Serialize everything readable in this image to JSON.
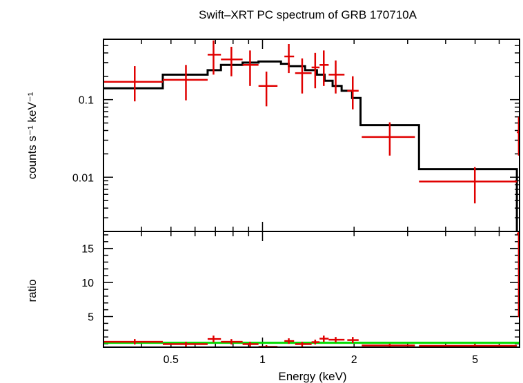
{
  "chart_data": [
    {
      "type": "scatter",
      "title": "Swift–XRT PC spectrum of GRB 170710A",
      "xlabel": "Energy (keV)",
      "ylabel": "counts s⁻¹ keV⁻¹",
      "xscale": "log",
      "yscale": "log",
      "xlim": [
        0.3,
        7.0
      ],
      "ylim": [
        0.002,
        0.6
      ],
      "y_tick_labels": [
        "0.01",
        "0.1"
      ],
      "y_tick_values": [
        0.01,
        0.1
      ],
      "x_tick_labels": [
        "0.5",
        "1",
        "2",
        "5"
      ],
      "x_tick_values": [
        0.5,
        1,
        2,
        5
      ],
      "data_color": "#e00000",
      "model_color": "#000000",
      "data": [
        {
          "x": 0.38,
          "xlo": 0.3,
          "xhi": 0.47,
          "y": 0.17,
          "ylo": 0.095,
          "yhi": 0.27
        },
        {
          "x": 0.56,
          "xlo": 0.47,
          "xhi": 0.66,
          "y": 0.18,
          "ylo": 0.098,
          "yhi": 0.28
        },
        {
          "x": 0.69,
          "xlo": 0.66,
          "xhi": 0.73,
          "y": 0.38,
          "ylo": 0.21,
          "yhi": 0.58
        },
        {
          "x": 0.79,
          "xlo": 0.73,
          "xhi": 0.86,
          "y": 0.33,
          "ylo": 0.2,
          "yhi": 0.48
        },
        {
          "x": 0.91,
          "xlo": 0.86,
          "xhi": 0.97,
          "y": 0.28,
          "ylo": 0.15,
          "yhi": 0.43
        },
        {
          "x": 1.03,
          "xlo": 0.97,
          "xhi": 1.12,
          "y": 0.15,
          "ylo": 0.082,
          "yhi": 0.23
        },
        {
          "x": 1.22,
          "xlo": 1.18,
          "xhi": 1.27,
          "y": 0.36,
          "ylo": 0.22,
          "yhi": 0.52
        },
        {
          "x": 1.35,
          "xlo": 1.28,
          "xhi": 1.45,
          "y": 0.22,
          "ylo": 0.12,
          "yhi": 0.34
        },
        {
          "x": 1.49,
          "xlo": 1.45,
          "xhi": 1.54,
          "y": 0.26,
          "ylo": 0.14,
          "yhi": 0.4
        },
        {
          "x": 1.59,
          "xlo": 1.54,
          "xhi": 1.65,
          "y": 0.28,
          "ylo": 0.15,
          "yhi": 0.43
        },
        {
          "x": 1.74,
          "xlo": 1.65,
          "xhi": 1.86,
          "y": 0.21,
          "ylo": 0.12,
          "yhi": 0.32
        },
        {
          "x": 1.98,
          "xlo": 1.9,
          "xhi": 2.07,
          "y": 0.13,
          "ylo": 0.075,
          "yhi": 0.2
        },
        {
          "x": 2.62,
          "xlo": 2.12,
          "xhi": 3.17,
          "y": 0.033,
          "ylo": 0.019,
          "yhi": 0.051
        },
        {
          "x": 4.99,
          "xlo": 3.27,
          "xhi": 6.86,
          "y": 0.0088,
          "ylo": 0.0046,
          "yhi": 0.0135
        },
        {
          "x": 6.96,
          "xlo": 6.86,
          "xhi": 7.0,
          "y": 0.038,
          "ylo": 0.019,
          "yhi": 0.06
        }
      ],
      "model_steps": [
        {
          "x": 0.3,
          "y": 0.14
        },
        {
          "x": 0.47,
          "y": 0.21
        },
        {
          "x": 0.63,
          "y": 0.21
        },
        {
          "x": 0.66,
          "y": 0.24
        },
        {
          "x": 0.73,
          "y": 0.28
        },
        {
          "x": 0.86,
          "y": 0.3
        },
        {
          "x": 0.97,
          "y": 0.31
        },
        {
          "x": 1.15,
          "y": 0.29
        },
        {
          "x": 1.22,
          "y": 0.27
        },
        {
          "x": 1.38,
          "y": 0.24
        },
        {
          "x": 1.51,
          "y": 0.21
        },
        {
          "x": 1.6,
          "y": 0.175
        },
        {
          "x": 1.7,
          "y": 0.15
        },
        {
          "x": 1.82,
          "y": 0.13
        },
        {
          "x": 1.97,
          "y": 0.105
        },
        {
          "x": 2.1,
          "y": 0.047
        },
        {
          "x": 3.27,
          "y": 0.0127
        },
        {
          "x": 6.86,
          "y": 0.0005
        }
      ]
    },
    {
      "type": "scatter",
      "xlabel": "Energy (keV)",
      "ylabel": "ratio",
      "xscale": "log",
      "yscale": "linear",
      "xlim": [
        0.3,
        7.0
      ],
      "ylim": [
        0.5,
        17.5
      ],
      "y_tick_labels": [
        "5",
        "10",
        "15"
      ],
      "y_tick_values": [
        5,
        10,
        15
      ],
      "x_tick_labels": [
        "0.5",
        "1",
        "2",
        "5"
      ],
      "x_tick_values": [
        0.5,
        1,
        2,
        5
      ],
      "reference_line": {
        "y": 1.15,
        "color": "#00dd00"
      },
      "data": [
        {
          "x": 0.38,
          "xlo": 0.3,
          "xhi": 0.47,
          "y": 1.3,
          "ylo": 0.9,
          "yhi": 1.7
        },
        {
          "x": 0.56,
          "xlo": 0.47,
          "xhi": 0.66,
          "y": 0.95,
          "ylo": 0.6,
          "yhi": 1.3
        },
        {
          "x": 0.69,
          "xlo": 0.66,
          "xhi": 0.73,
          "y": 1.7,
          "ylo": 1.2,
          "yhi": 2.2
        },
        {
          "x": 0.79,
          "xlo": 0.73,
          "xhi": 0.86,
          "y": 1.3,
          "ylo": 0.9,
          "yhi": 1.7
        },
        {
          "x": 0.91,
          "xlo": 0.86,
          "xhi": 0.97,
          "y": 0.95,
          "ylo": 0.6,
          "yhi": 1.3
        },
        {
          "x": 1.03,
          "xlo": 0.97,
          "xhi": 1.12,
          "y": 0.55,
          "ylo": 0.4,
          "yhi": 0.8
        },
        {
          "x": 1.22,
          "xlo": 1.18,
          "xhi": 1.27,
          "y": 1.4,
          "ylo": 1.0,
          "yhi": 1.8
        },
        {
          "x": 1.35,
          "xlo": 1.28,
          "xhi": 1.45,
          "y": 0.95,
          "ylo": 0.6,
          "yhi": 1.3
        },
        {
          "x": 1.49,
          "xlo": 1.45,
          "xhi": 1.54,
          "y": 1.25,
          "ylo": 0.9,
          "yhi": 1.6
        },
        {
          "x": 1.59,
          "xlo": 1.54,
          "xhi": 1.65,
          "y": 1.75,
          "ylo": 1.3,
          "yhi": 2.2
        },
        {
          "x": 1.74,
          "xlo": 1.65,
          "xhi": 1.86,
          "y": 1.6,
          "ylo": 1.2,
          "yhi": 2.0
        },
        {
          "x": 1.98,
          "xlo": 1.9,
          "xhi": 2.07,
          "y": 1.55,
          "ylo": 1.1,
          "yhi": 2.0
        },
        {
          "x": 2.62,
          "xlo": 2.12,
          "xhi": 3.17,
          "y": 0.75,
          "ylo": 0.5,
          "yhi": 1.0
        },
        {
          "x": 4.99,
          "xlo": 3.27,
          "xhi": 6.86,
          "y": 0.7,
          "ylo": 0.5,
          "yhi": 0.95
        },
        {
          "x": 6.96,
          "xlo": 6.86,
          "xhi": 7.0,
          "y": 17.2,
          "ylo": 4.9,
          "yhi": 17.5
        }
      ]
    }
  ]
}
